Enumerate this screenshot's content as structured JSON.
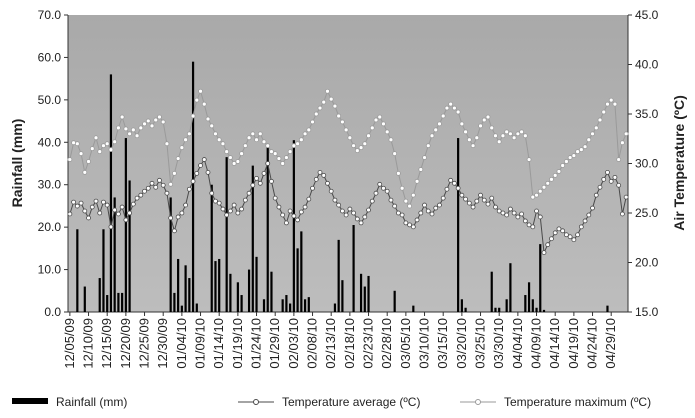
{
  "chart_data": {
    "type": "bar-line",
    "y_label": "Rainfall (mm)",
    "y2_label": "Air Temperature (ºC)",
    "categories": [
      "12/05/09",
      null,
      null,
      null,
      null,
      "12/10/09",
      null,
      null,
      null,
      null,
      "12/15/09",
      null,
      null,
      null,
      null,
      "12/20/09",
      null,
      null,
      null,
      null,
      "12/25/09",
      null,
      null,
      null,
      null,
      "12/30/09",
      null,
      null,
      null,
      null,
      "01/04/10",
      null,
      null,
      null,
      null,
      "01/09/10",
      null,
      null,
      null,
      null,
      "01/14/10",
      null,
      null,
      null,
      null,
      "01/19/10",
      null,
      null,
      null,
      null,
      "01/24/10",
      null,
      null,
      null,
      null,
      "01/29/10",
      null,
      null,
      null,
      null,
      "02/03/10",
      null,
      null,
      null,
      null,
      "02/08/10",
      null,
      null,
      null,
      null,
      "02/13/10",
      null,
      null,
      null,
      null,
      "02/18/10",
      null,
      null,
      null,
      null,
      "02/23/10",
      null,
      null,
      null,
      null,
      "02/28/10",
      null,
      null,
      null,
      null,
      "03/05/10",
      null,
      null,
      null,
      null,
      "03/10/10",
      null,
      null,
      null,
      null,
      "03/15/10",
      null,
      null,
      null,
      null,
      "03/20/10",
      null,
      null,
      null,
      null,
      "03/25/10",
      null,
      null,
      null,
      null,
      "03/30/10",
      null,
      null,
      null,
      null,
      "04/04/10",
      null,
      null,
      null,
      null,
      "04/09/10",
      null,
      null,
      null,
      null,
      "04/14/10",
      null,
      null,
      null,
      null,
      "04/19/10",
      null,
      null,
      null,
      null,
      "04/24/10",
      null,
      null,
      null,
      null,
      "04/29/10",
      null,
      null,
      null,
      null
    ],
    "series": [
      {
        "name": "Rainfall (mm)",
        "type": "bar",
        "color": "#000000",
        "axis": "y",
        "values": [
          0,
          0,
          19.5,
          0,
          6,
          0,
          0,
          0,
          8,
          19.5,
          4,
          56,
          27,
          4.5,
          4.5,
          41,
          31,
          0,
          0,
          0,
          0,
          0,
          0,
          0,
          0,
          0,
          0,
          27,
          4.5,
          12.5,
          1.5,
          11,
          8,
          59,
          2,
          0,
          0,
          0,
          30,
          12,
          12.5,
          0,
          36.5,
          9,
          0,
          7,
          4,
          0,
          10,
          34.5,
          13,
          0,
          3,
          39,
          9.5,
          0,
          0,
          3,
          4,
          2,
          40.5,
          15,
          19,
          3,
          3.5,
          0,
          0,
          0,
          0,
          0,
          0,
          2,
          17,
          7.5,
          0,
          0,
          20.5,
          0,
          9,
          6,
          8.5,
          0,
          0,
          0,
          0,
          0,
          0,
          5,
          0,
          0,
          0,
          0,
          1.5,
          0,
          0,
          0,
          0,
          0,
          0,
          0,
          0,
          0,
          0,
          0,
          41,
          3,
          1,
          0,
          0,
          0,
          0,
          0,
          0,
          9.5,
          1,
          1,
          0,
          3,
          11.5,
          0,
          0,
          0,
          4,
          7,
          3,
          1,
          16,
          0.5,
          0,
          0,
          0,
          0,
          0,
          0,
          0,
          0,
          0,
          0,
          0,
          0,
          0,
          0,
          0,
          0,
          1.5,
          0,
          0,
          0,
          0,
          0
        ]
      },
      {
        "name": "Temperature average (ºC)",
        "type": "line",
        "color": "#4a4a4a",
        "axis": "y2",
        "values": [
          24.9,
          26.1,
          25.7,
          26.0,
          25.2,
          24.5,
          25.6,
          26.2,
          25.0,
          26.1,
          25.8,
          23.6,
          25.3,
          24.9,
          25.6,
          24.3,
          25.0,
          25.9,
          26.5,
          26.8,
          27.2,
          27.5,
          28.0,
          27.6,
          28.3,
          27.8,
          27.0,
          24.5,
          23.2,
          24.6,
          25.0,
          25.8,
          27.4,
          28.2,
          29.0,
          29.8,
          30.4,
          29.1,
          27.0,
          26.2,
          26.0,
          25.4,
          24.8,
          25.2,
          25.8,
          25.0,
          25.4,
          26.3,
          27.0,
          27.8,
          28.5,
          28.0,
          29.0,
          30.0,
          28.2,
          26.5,
          25.6,
          24.8,
          24.0,
          25.2,
          24.7,
          24.3,
          25.1,
          25.6,
          26.4,
          27.5,
          28.4,
          29.1,
          28.8,
          28.0,
          27.2,
          26.3,
          25.8,
          25.2,
          24.8,
          25.4,
          25.0,
          24.4,
          24.0,
          24.6,
          25.3,
          26.2,
          27.0,
          27.9,
          27.5,
          27.2,
          26.3,
          25.7,
          25.0,
          24.8,
          24.0,
          23.8,
          23.6,
          24.3,
          25.0,
          25.8,
          25.2,
          24.9,
          25.5,
          25.8,
          26.5,
          27.4,
          28.3,
          28.0,
          27.5,
          26.8,
          26.4,
          26.0,
          25.6,
          26.2,
          26.8,
          26.3,
          25.9,
          26.5,
          25.6,
          25.2,
          25.0,
          24.8,
          25.4,
          25.0,
          24.6,
          24.9,
          24.2,
          23.8,
          23.6,
          25.2,
          24.6,
          21.0,
          21.8,
          22.4,
          23.0,
          23.4,
          23.2,
          22.8,
          22.6,
          22.3,
          22.8,
          23.6,
          24.2,
          24.8,
          25.5,
          26.8,
          27.6,
          28.4,
          29.1,
          28.2,
          28.6,
          27.8,
          24.9,
          26.6
        ]
      },
      {
        "name": "Temperature maximum (ºC)",
        "type": "line",
        "color": "#9a9a9a",
        "axis": "y2",
        "values": [
          30.4,
          32.1,
          32.0,
          31.0,
          29.1,
          30.2,
          31.5,
          32.6,
          31.2,
          31.8,
          32.0,
          31.4,
          32.2,
          33.6,
          34.7,
          33.5,
          33.0,
          33.4,
          32.8,
          33.6,
          34.0,
          34.3,
          33.8,
          34.4,
          34.7,
          34.2,
          32.0,
          27.9,
          29.0,
          30.5,
          31.6,
          32.4,
          33.0,
          34.8,
          36.4,
          37.3,
          36.0,
          34.5,
          33.8,
          33.0,
          32.4,
          32.0,
          31.2,
          30.6,
          30.0,
          30.2,
          31.0,
          31.8,
          32.6,
          33.0,
          32.4,
          33.0,
          32.2,
          31.8,
          31.2,
          31.0,
          30.5,
          30.0,
          30.6,
          31.2,
          31.8,
          32.0,
          32.4,
          33.0,
          33.4,
          34.2,
          35.0,
          35.6,
          36.2,
          37.3,
          36.5,
          35.8,
          34.8,
          34.2,
          33.4,
          32.6,
          31.8,
          31.3,
          31.6,
          32.0,
          32.8,
          33.6,
          34.4,
          34.7,
          34.0,
          33.2,
          32.4,
          31.0,
          29.0,
          27.5,
          26.2,
          25.7,
          26.8,
          28.2,
          29.4,
          30.6,
          31.8,
          32.8,
          33.4,
          34.0,
          34.8,
          35.6,
          36.0,
          35.6,
          35.2,
          34.0,
          33.2,
          32.4,
          31.8,
          32.6,
          33.8,
          34.4,
          34.7,
          33.6,
          32.8,
          32.2,
          32.8,
          33.2,
          33.0,
          32.6,
          33.0,
          33.2,
          32.8,
          30.4,
          26.6,
          26.8,
          27.2,
          27.6,
          28.0,
          28.4,
          28.8,
          29.2,
          29.8,
          30.2,
          30.6,
          30.8,
          31.2,
          31.4,
          31.7,
          32.4,
          33.0,
          33.6,
          34.4,
          35.2,
          36.0,
          36.4,
          36.0,
          30.4,
          32.1,
          33.0
        ]
      }
    ],
    "ylim": [
      0,
      70
    ],
    "yticks": [
      {
        "value": 0,
        "label": "0.0"
      },
      {
        "value": 10,
        "label": "10.0"
      },
      {
        "value": 20,
        "label": "20.0"
      },
      {
        "value": 30,
        "label": "30.0"
      },
      {
        "value": 40,
        "label": "40.0"
      },
      {
        "value": 50,
        "label": "50.0"
      },
      {
        "value": 60,
        "label": "60.0"
      },
      {
        "value": 70,
        "label": "70.0"
      }
    ],
    "y2lim": [
      15,
      45
    ],
    "y2ticks": [
      {
        "value": 15,
        "label": "15.0"
      },
      {
        "value": 20,
        "label": "20.0"
      },
      {
        "value": 25,
        "label": "25.0"
      },
      {
        "value": 30,
        "label": "30.0"
      },
      {
        "value": 35,
        "label": "35.0"
      },
      {
        "value": 40,
        "label": "40.0"
      },
      {
        "value": 45,
        "label": "45.0"
      }
    ],
    "legend": "bottom"
  }
}
